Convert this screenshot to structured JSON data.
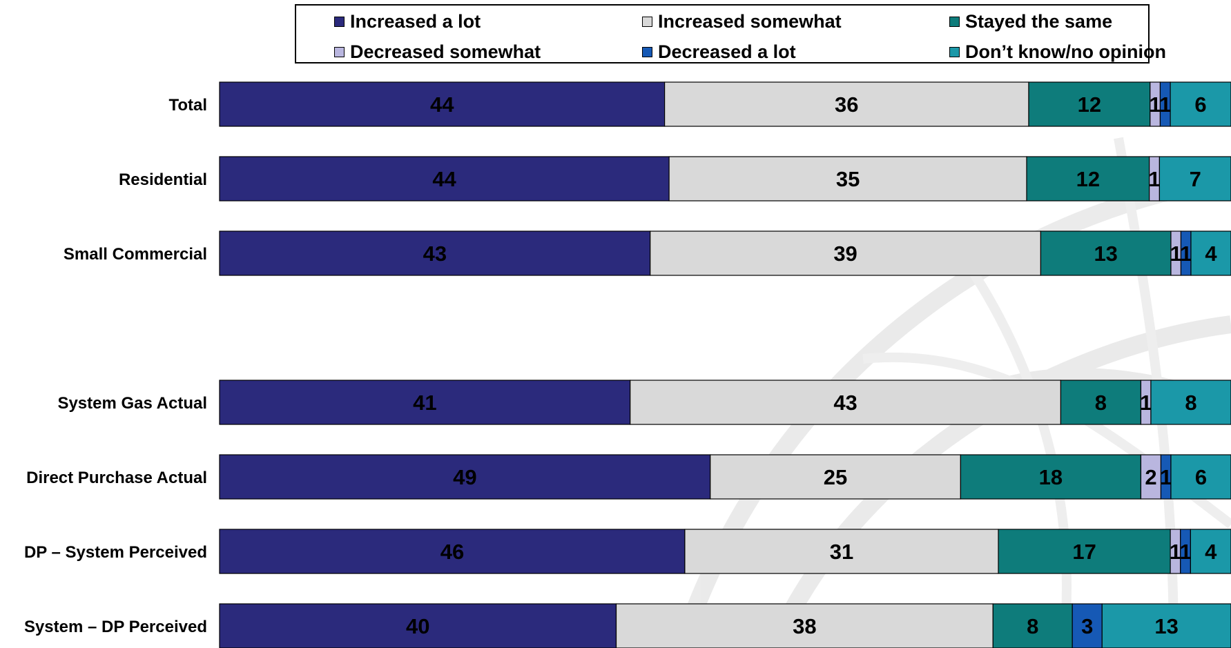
{
  "chart_data": {
    "type": "bar",
    "orientation": "horizontal",
    "stacked": true,
    "normalized": true,
    "xlim": [
      0,
      100
    ],
    "grid": false,
    "legend_position": "top",
    "title": "",
    "xlabel": "",
    "ylabel": "",
    "categories": [
      "Total",
      "Residential",
      "Small Commercial",
      "",
      "System Gas Actual",
      "Direct Purchase Actual",
      "DP – System Perceived",
      "System – DP Perceived"
    ],
    "series": [
      {
        "name": "Increased a lot",
        "color": "#2b2a7c",
        "values": [
          44,
          44,
          43,
          null,
          41,
          49,
          46,
          40
        ]
      },
      {
        "name": "Increased somewhat",
        "color": "#d9d9d9",
        "values": [
          36,
          35,
          39,
          null,
          43,
          25,
          31,
          38
        ]
      },
      {
        "name": "Stayed the same",
        "color": "#0e7c7b",
        "values": [
          12,
          12,
          13,
          null,
          8,
          18,
          17,
          8
        ]
      },
      {
        "name": "Decreased somewhat",
        "color": "#b9b6df",
        "values": [
          1,
          1,
          1,
          null,
          1,
          2,
          1,
          0
        ]
      },
      {
        "name": "Decreased a lot",
        "color": "#1659b5",
        "values": [
          1,
          0,
          1,
          null,
          0,
          1,
          1,
          3
        ]
      },
      {
        "name": "Don’t know/no opinion",
        "color": "#1b98a8",
        "values": [
          6,
          7,
          4,
          null,
          8,
          6,
          4,
          13
        ]
      }
    ]
  },
  "legend": {
    "items": [
      {
        "label": "Increased a lot",
        "color": "#2b2a7c"
      },
      {
        "label": "Increased somewhat",
        "color": "#d9d9d9"
      },
      {
        "label": "Stayed the same",
        "color": "#0e7c7b"
      },
      {
        "label": "Decreased somewhat",
        "color": "#b9b6df"
      },
      {
        "label": "Decreased a lot",
        "color": "#1659b5"
      },
      {
        "label": "Don’t know/no opinion",
        "color": "#1b98a8"
      }
    ]
  }
}
